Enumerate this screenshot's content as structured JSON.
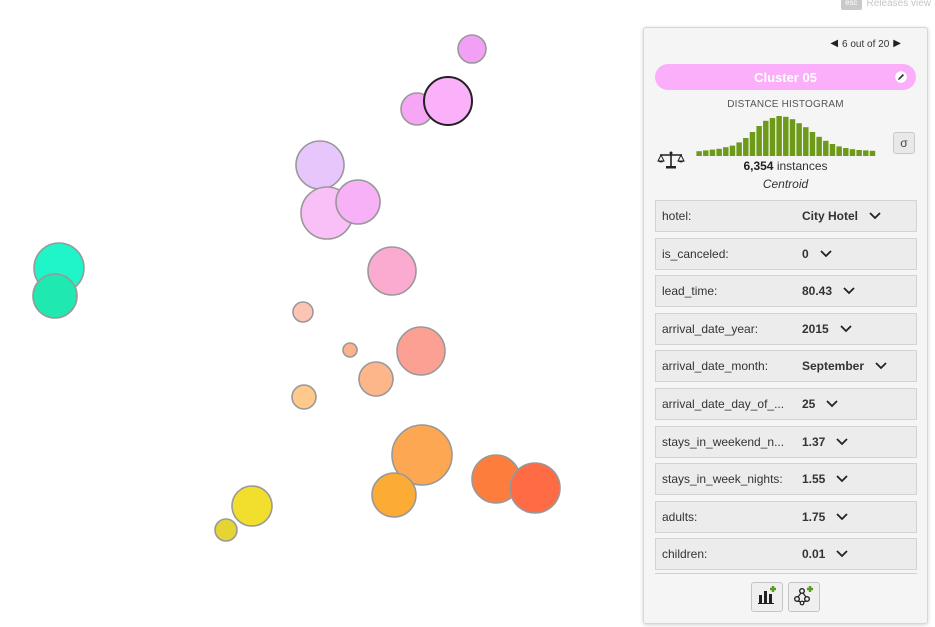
{
  "top_hint": {
    "key": "esc",
    "label": "Releases view"
  },
  "panel": {
    "pager": {
      "text": "6 out of 20"
    },
    "cluster_name": "Cluster 05",
    "cluster_color": "#fbaefa",
    "histogram_title": "DISTANCE HISTOGRAM",
    "histogram_color": "#6e9a1a",
    "histogram_bins": [
      0.12,
      0.14,
      0.16,
      0.18,
      0.22,
      0.26,
      0.34,
      0.45,
      0.6,
      0.75,
      0.88,
      0.95,
      1.0,
      0.98,
      0.92,
      0.82,
      0.72,
      0.6,
      0.48,
      0.38,
      0.3,
      0.24,
      0.2,
      0.17,
      0.15,
      0.14,
      0.13
    ],
    "instances_count": "6,354",
    "instances_label": "instances",
    "centroid_label": "Centroid",
    "sigma_label": "σ",
    "fields": [
      {
        "name": "hotel:",
        "value": "City Hotel"
      },
      {
        "name": "is_canceled:",
        "value": "0"
      },
      {
        "name": "lead_time:",
        "value": "80.43"
      },
      {
        "name": "arrival_date_year:",
        "value": "2015"
      },
      {
        "name": "arrival_date_month:",
        "value": "September"
      },
      {
        "name": "arrival_date_day_of_...",
        "value": "25"
      },
      {
        "name": "stays_in_weekend_n...",
        "value": "1.37"
      },
      {
        "name": "stays_in_week_nights:",
        "value": "1.55"
      },
      {
        "name": "adults:",
        "value": "1.75"
      },
      {
        "name": "children:",
        "value": "0.01"
      }
    ],
    "icons": {
      "prev": "triangle-left-icon",
      "next": "triangle-right-icon",
      "edit": "pencil-icon",
      "balance": "balance-scale-icon",
      "chevron": "chevron-down-icon",
      "add_chart": "add-chart-icon",
      "add_tree": "add-model-icon"
    }
  },
  "clusters_colors": {
    "selected_stroke": "#222222",
    "default_stroke": "#999999"
  }
}
